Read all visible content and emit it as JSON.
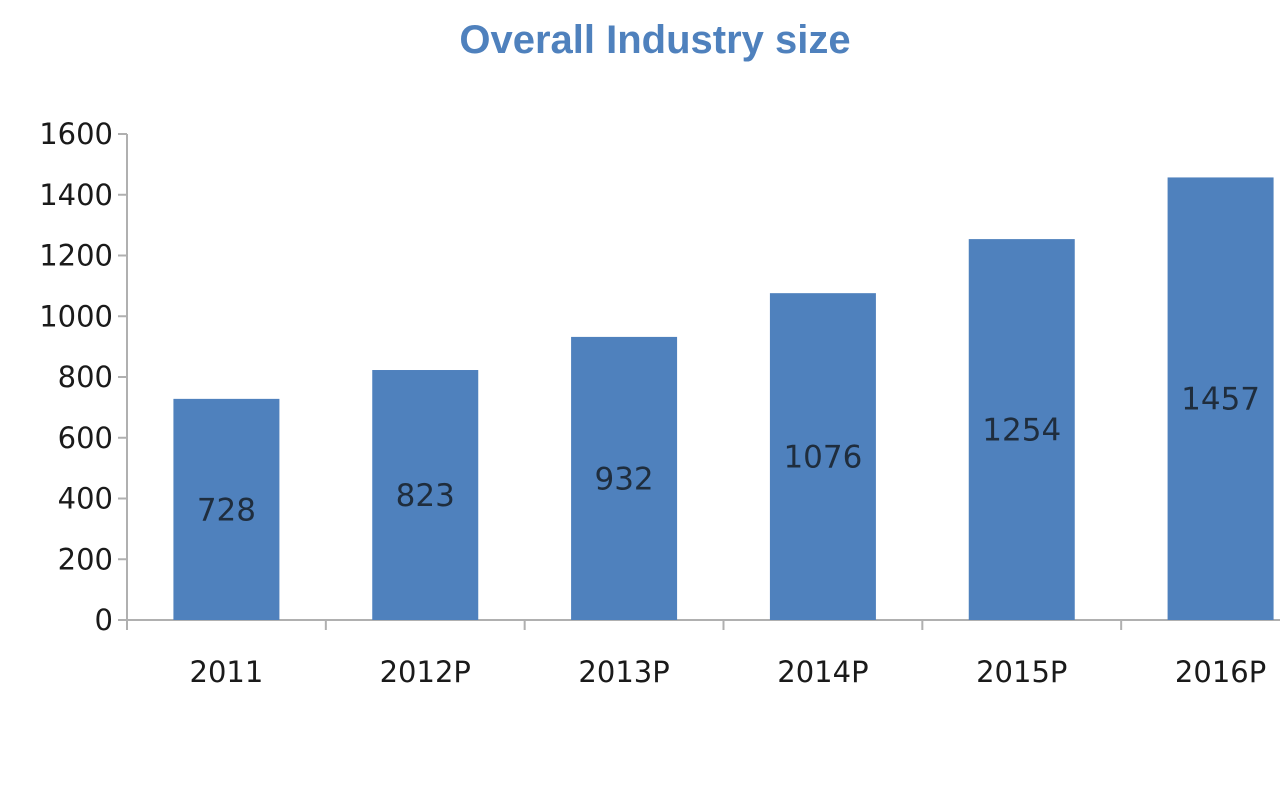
{
  "chart_data": {
    "type": "bar",
    "title": "Overall Industry size",
    "categories": [
      "2011",
      "2012P",
      "2013P",
      "2014P",
      "2015P",
      "2016P"
    ],
    "values": [
      728,
      823,
      932,
      1076,
      1254,
      1457
    ],
    "data_labels": [
      "728",
      "823",
      "932",
      "1076",
      "1254",
      "1457"
    ],
    "ylim": [
      0,
      1600
    ],
    "yticks": [
      0,
      200,
      400,
      600,
      800,
      1000,
      1200,
      1400,
      1600
    ],
    "ytick_labels": [
      "0",
      "200",
      "400",
      "600",
      "800",
      "1000",
      "1200",
      "1400",
      "1600"
    ],
    "grid": false,
    "legend": "none",
    "bar_color": "#4f81bd"
  }
}
